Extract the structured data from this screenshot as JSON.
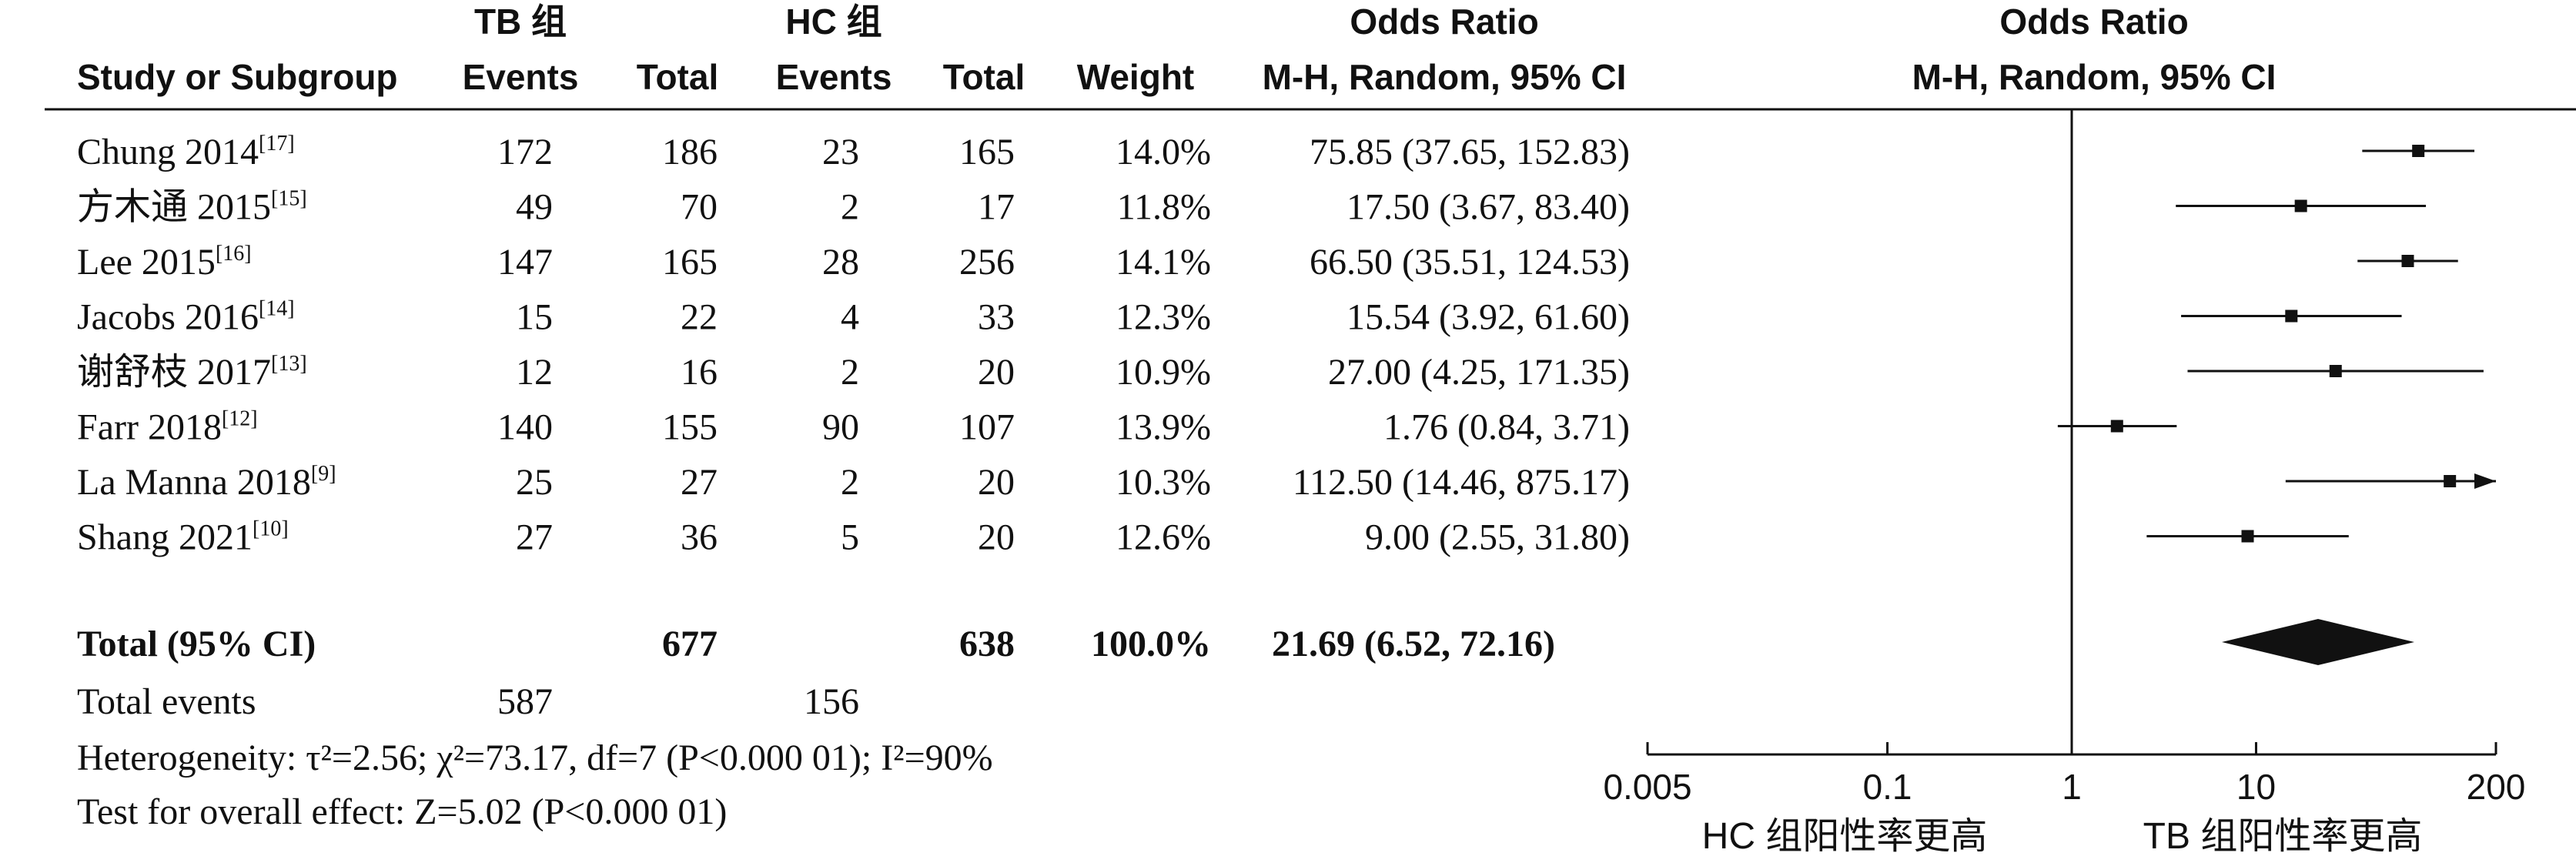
{
  "chart_data": {
    "type": "forest",
    "columns": {
      "group1_title": "TB 组",
      "group2_title": "HC 组",
      "study": "Study or Subgroup",
      "events": "Events",
      "total": "Total",
      "weight": "Weight",
      "or_title": "Odds Ratio",
      "or_method": "M-H, Random, 95% CI",
      "plot_title": "Odds Ratio",
      "plot_method": "M-H, Random, 95% CI"
    },
    "studies": [
      {
        "name": "Chung 2014",
        "ref": "[17]",
        "e1": "172",
        "n1": "186",
        "e2": "23",
        "n2": "165",
        "weight": "14.0%",
        "ci_text": "75.85 (37.65, 152.83)",
        "or": 75.85,
        "lo": 37.65,
        "hi": 152.83
      },
      {
        "name": "方木通 2015",
        "ref": "[15]",
        "e1": "49",
        "n1": "70",
        "e2": "2",
        "n2": "17",
        "weight": "11.8%",
        "ci_text": "17.50 (3.67, 83.40)",
        "or": 17.5,
        "lo": 3.67,
        "hi": 83.4
      },
      {
        "name": "Lee 2015",
        "ref": "[16]",
        "e1": "147",
        "n1": "165",
        "e2": "28",
        "n2": "256",
        "weight": "14.1%",
        "ci_text": "66.50 (35.51, 124.53)",
        "or": 66.5,
        "lo": 35.51,
        "hi": 124.53
      },
      {
        "name": "Jacobs 2016",
        "ref": "[14]",
        "e1": "15",
        "n1": "22",
        "e2": "4",
        "n2": "33",
        "weight": "12.3%",
        "ci_text": "15.54 (3.92, 61.60)",
        "or": 15.54,
        "lo": 3.92,
        "hi": 61.6
      },
      {
        "name": "谢舒枝 2017",
        "ref": "[13]",
        "e1": "12",
        "n1": "16",
        "e2": "2",
        "n2": "20",
        "weight": "10.9%",
        "ci_text": "27.00 (4.25, 171.35)",
        "or": 27.0,
        "lo": 4.25,
        "hi": 171.35
      },
      {
        "name": "Farr 2018",
        "ref": "[12]",
        "e1": "140",
        "n1": "155",
        "e2": "90",
        "n2": "107",
        "weight": "13.9%",
        "ci_text": "1.76 (0.84, 3.71)",
        "or": 1.76,
        "lo": 0.84,
        "hi": 3.71
      },
      {
        "name": "La Manna 2018",
        "ref": "[9]",
        "e1": "25",
        "n1": "27",
        "e2": "2",
        "n2": "20",
        "weight": "10.3%",
        "ci_text": "112.50 (14.46, 875.17)",
        "or": 112.5,
        "lo": 14.46,
        "hi": 875.17
      },
      {
        "name": "Shang 2021",
        "ref": "[10]",
        "e1": "27",
        "n1": "36",
        "e2": "5",
        "n2": "20",
        "weight": "12.6%",
        "ci_text": "9.00 (2.55, 31.80)",
        "or": 9.0,
        "lo": 2.55,
        "hi": 31.8
      }
    ],
    "total": {
      "label": "Total (95% CI)",
      "n1": "677",
      "n2": "638",
      "weight": "100.0%",
      "ci_text": "21.69 (6.52, 72.16)",
      "or": 21.69,
      "lo": 6.52,
      "hi": 72.16
    },
    "total_events": {
      "label": "Total events",
      "e1": "587",
      "e2": "156"
    },
    "heterogeneity": "Heterogeneity: τ²=2.56; χ²=73.17, df=7 (P<0.000 01); I²=90%",
    "overall_effect": "Test for overall effect: Z=5.02 (P<0.000 01)",
    "x_axis": {
      "scale": "log",
      "range": [
        0.005,
        200
      ],
      "ticks": [
        0.005,
        0.1,
        1,
        10,
        200
      ],
      "tick_labels": [
        "0.005",
        "0.1",
        "1",
        "10",
        "200"
      ],
      "left_label": "HC 组阳性率更高",
      "right_label": "TB 组阳性率更高"
    },
    "colors": {
      "ink": "#111111",
      "background": "#ffffff"
    }
  }
}
